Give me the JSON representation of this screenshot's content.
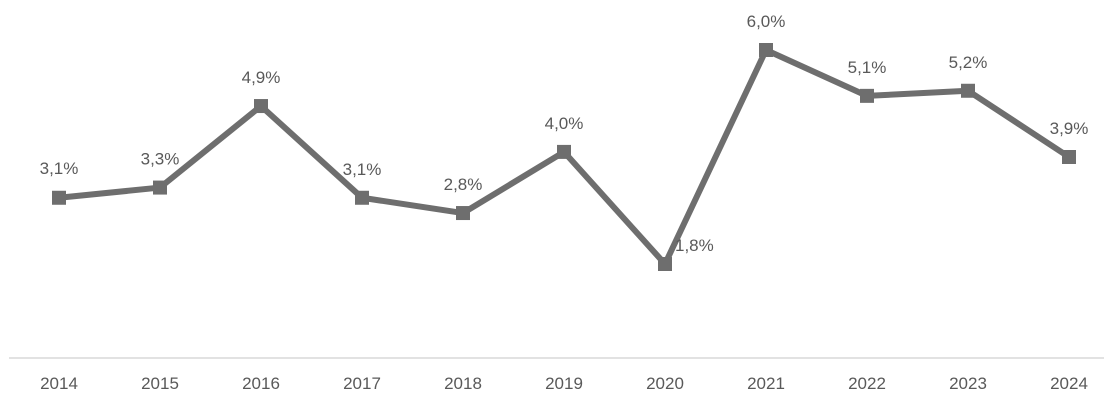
{
  "chart_data": {
    "type": "line",
    "categories": [
      "2014",
      "2015",
      "2016",
      "2017",
      "2018",
      "2019",
      "2020",
      "2021",
      "2022",
      "2023",
      "2024"
    ],
    "series": [
      {
        "values": [
          3.1,
          3.3,
          4.9,
          3.1,
          2.8,
          4.0,
          1.8,
          6.0,
          5.1,
          5.2,
          3.9
        ],
        "labels": [
          "3,1%",
          "3,3%",
          "4,9%",
          "3,1%",
          "2,8%",
          "4,0%",
          "1,8%",
          "6,0%",
          "5,1%",
          "5,2%",
          "3,9%"
        ]
      }
    ],
    "title": "",
    "xlabel": "",
    "ylabel": "",
    "ylim": [
      0,
      7
    ],
    "grid": false,
    "legend": "none",
    "colors": {
      "line": "#6e6e6e",
      "axis": "#d9d9d9",
      "text": "#595959"
    }
  }
}
